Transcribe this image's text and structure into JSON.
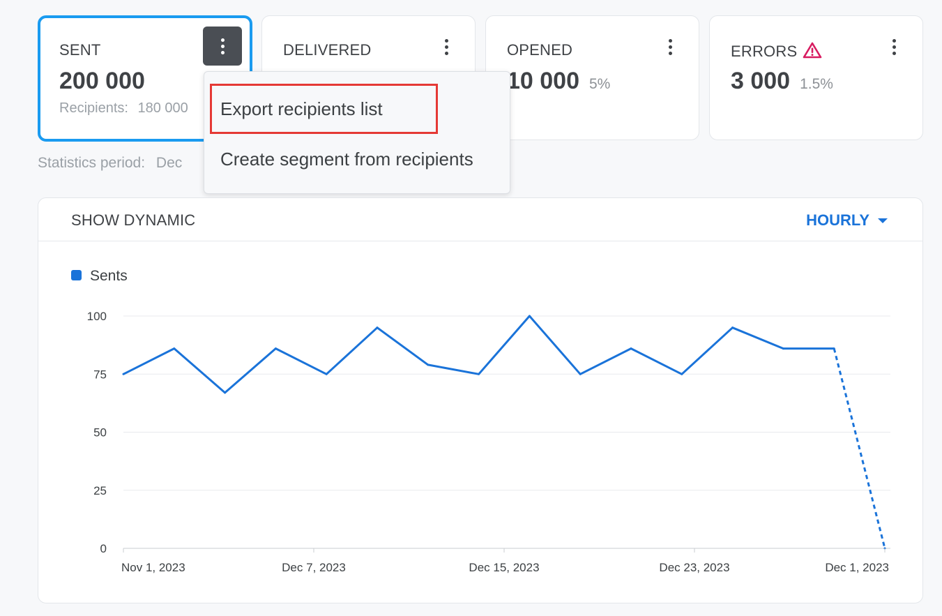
{
  "cards": [
    {
      "title": "SENT",
      "value": "200 000",
      "sub_label": "Recipients:",
      "sub_value": "180 000"
    },
    {
      "title": "DELIVERED",
      "value": "",
      "pct": ""
    },
    {
      "title": "OPENED",
      "value": "10 000",
      "pct": "5%"
    },
    {
      "title": "ERRORS",
      "value": "3 000",
      "pct": "1.5%",
      "icon": "warning-triangle-icon"
    }
  ],
  "period": {
    "label": "Statistics period:",
    "value": "Dec"
  },
  "menu": {
    "items": [
      "Export recipients list",
      "Create segment from recipients"
    ]
  },
  "panel": {
    "title": "SHOW DYNAMIC",
    "interval": "HOURLY"
  },
  "colors": {
    "accent": "#1a73d9",
    "selected_border": "#1a9bf0",
    "error": "#d81b60",
    "highlight": "#e53935"
  },
  "chart_data": {
    "type": "line",
    "series": [
      {
        "name": "Sents",
        "values": [
          75,
          86,
          67,
          86,
          75,
          95,
          79,
          75,
          100,
          75,
          86,
          75,
          95,
          86,
          86,
          0
        ],
        "projected_from_index": 14
      }
    ],
    "x_ticks": [
      "Nov 1, 2023",
      "Dec 7, 2023",
      "Dec 15, 2023",
      "Dec 23, 2023",
      "Dec 1, 2023"
    ],
    "y_ticks": [
      100,
      75,
      50,
      25,
      0
    ],
    "ylim": [
      0,
      100
    ],
    "legend": "top-left",
    "grid": true,
    "color": "#1a73d9"
  }
}
